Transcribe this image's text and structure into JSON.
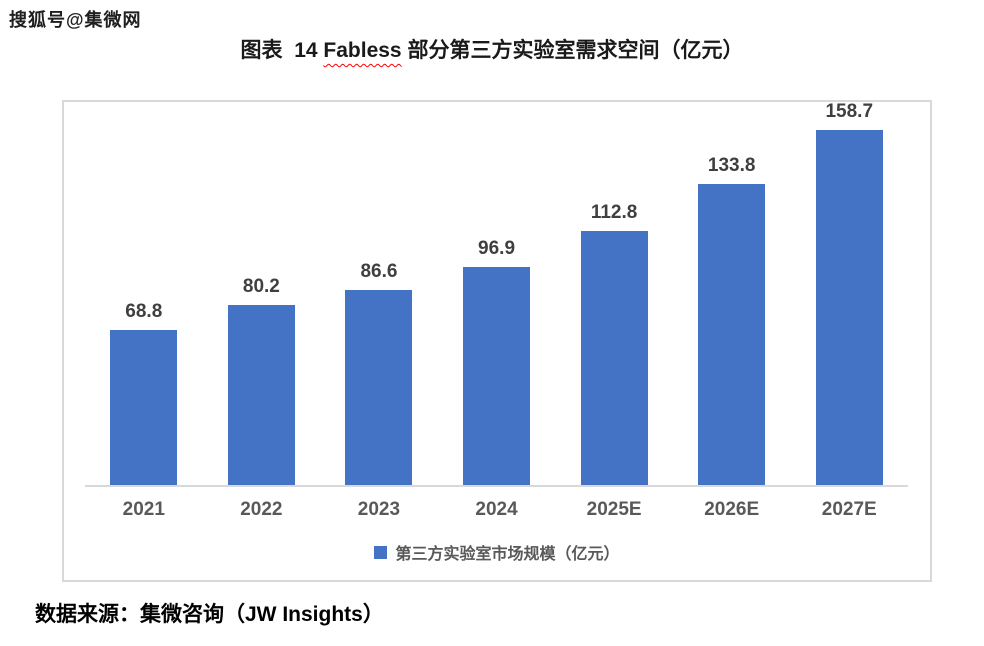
{
  "watermark": "搜狐号@集微网",
  "title": {
    "prefix": "图表  14 ",
    "underlined_word": "Fabless",
    "suffix": " 部分第三方实验室需求空间（亿元）",
    "full": "图表 14 Fabless 部分第三方实验室需求空间（亿元）"
  },
  "source_line": "数据来源：集微咨询（JW Insights）",
  "colors": {
    "bar": "#4472C4",
    "chart_border": "#D9D9D9",
    "axis_line": "#D9D9D9",
    "value_label": "#3F3F3F",
    "axis_label": "#595959",
    "legend_text": "#595959",
    "misspell_underline": "#FF0000"
  },
  "chart_data": {
    "type": "bar",
    "title": "图表 14 Fabless 部分第三方实验室需求空间（亿元）",
    "categories": [
      "2021",
      "2022",
      "2023",
      "2024",
      "2025E",
      "2026E",
      "2027E"
    ],
    "series": [
      {
        "name": "第三方实验室市场规模（亿元）",
        "values": [
          68.8,
          80.2,
          86.6,
          96.9,
          112.8,
          133.8,
          158.7
        ]
      }
    ],
    "value_labels": [
      "68.8",
      "80.2",
      "86.6",
      "96.9",
      "112.8",
      "133.8",
      "158.7"
    ],
    "xlabel": "",
    "ylabel": "",
    "ylim": [
      0,
      172
    ],
    "grid": false,
    "legend_position": "bottom",
    "value_labels_shown": true
  }
}
